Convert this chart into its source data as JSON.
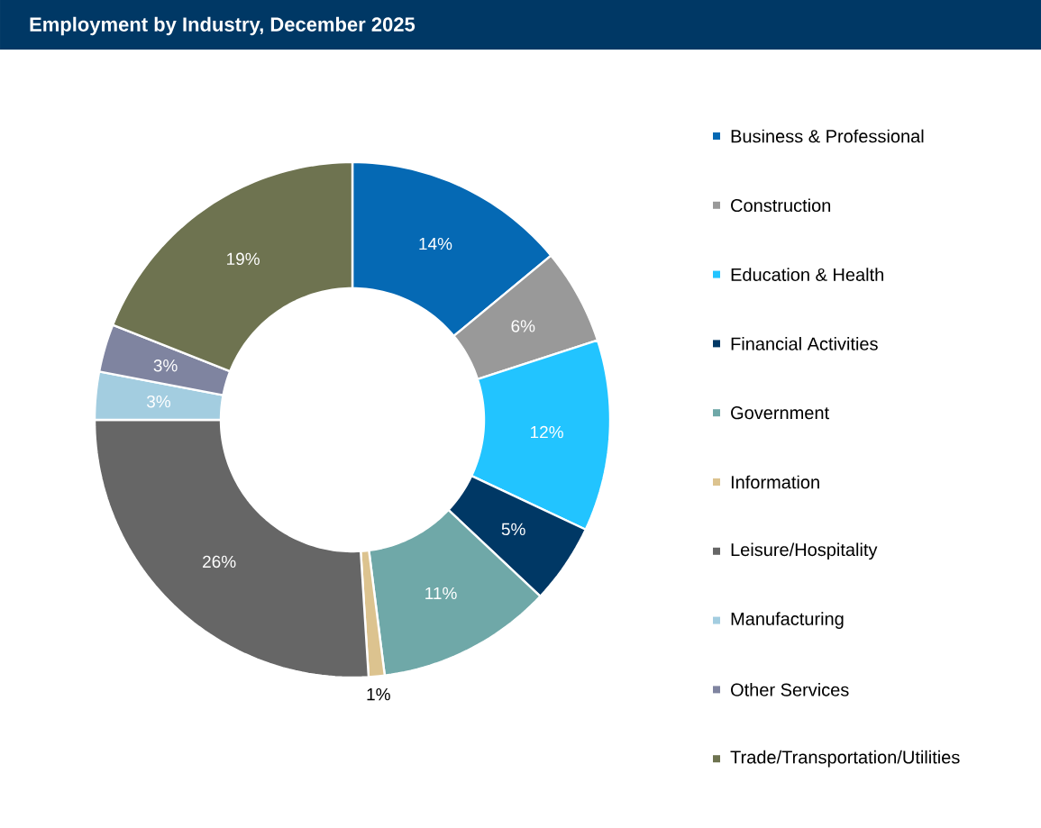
{
  "chart_data": {
    "type": "donut",
    "title": "Employment by Industry, December 2025",
    "categories": [
      "Business & Professional",
      "Construction",
      "Education & Health",
      "Financial Activities",
      "Government",
      "Information",
      "Leisure/Hospitality",
      "Manufacturing",
      "Other Services",
      "Trade/Transportation/Utilities"
    ],
    "values": [
      14,
      6,
      12,
      5,
      11,
      1,
      26,
      3,
      3,
      19
    ],
    "value_labels": [
      "14%",
      "6%",
      "12%",
      "5%",
      "11%",
      "1%",
      "26%",
      "3%",
      "3%",
      "19%"
    ],
    "colors": [
      "#0569b4",
      "#999999",
      "#22c4ff",
      "#003865",
      "#6fa8a8",
      "#dcc38f",
      "#666666",
      "#a3cde0",
      "#7f84a0",
      "#6e7350"
    ],
    "legend": "right"
  }
}
